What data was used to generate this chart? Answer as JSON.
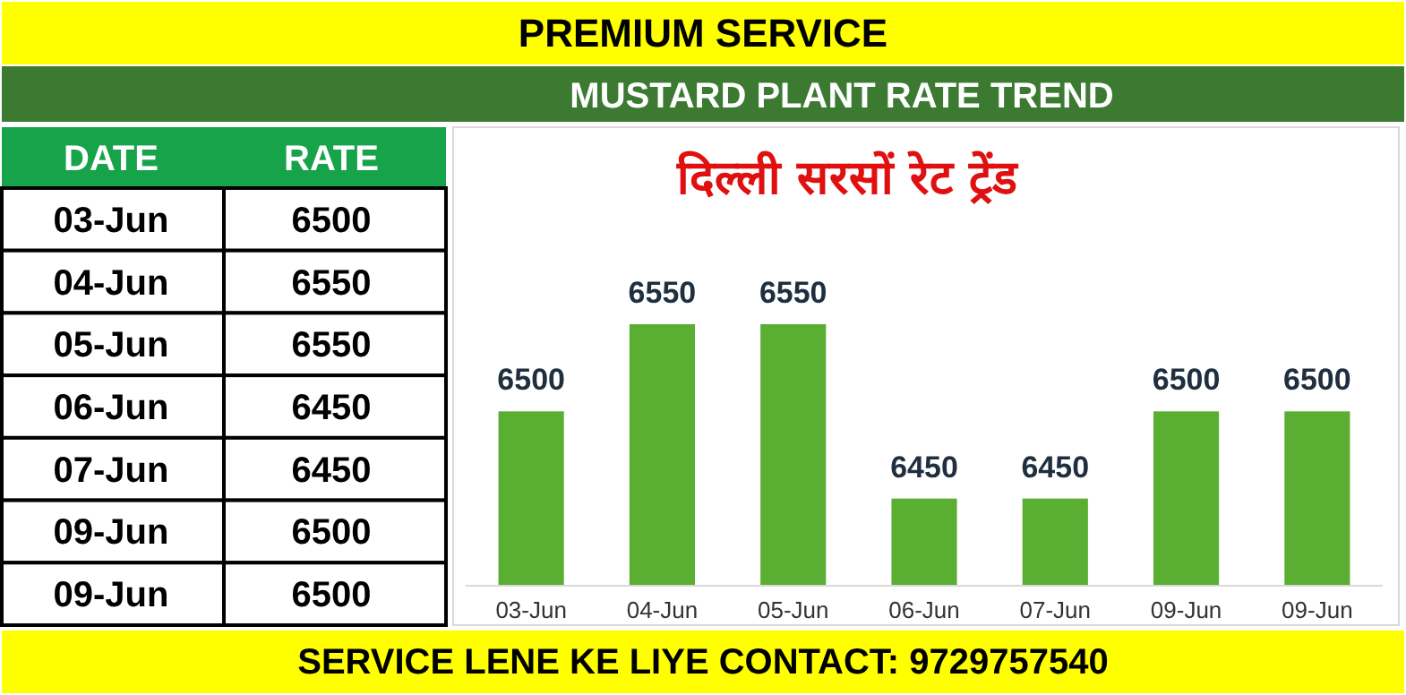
{
  "chart_data": [
    {
      "type": "other",
      "title": "PREMIUM SERVICE",
      "subtitle": "MUSTARD PLANT RATE TREND",
      "annotations": [
        "DATE",
        "RATE"
      ],
      "categories": [
        "03-Jun",
        "04-Jun",
        "05-Jun",
        "06-Jun",
        "07-Jun",
        "09-Jun",
        "09-Jun"
      ],
      "values": [
        6500,
        6550,
        6550,
        6450,
        6450,
        6500,
        6500
      ],
      "data_labels": true
    },
    {
      "type": "bar",
      "title": "दिल्ली सरसों रेट ट्रेंड",
      "annotations": [
        "SERVICE LENE KE LIYE CONTACT: 9729757540"
      ],
      "categories": [
        "03-Jun",
        "04-Jun",
        "05-Jun",
        "06-Jun",
        "07-Jun",
        "09-Jun",
        "09-Jun"
      ],
      "values": [
        6500,
        6550,
        6550,
        6450,
        6450,
        6500,
        6500
      ],
      "color": "#5aae32",
      "ylim": [
        6400,
        6550
      ],
      "data_labels": true
    }
  ]
}
